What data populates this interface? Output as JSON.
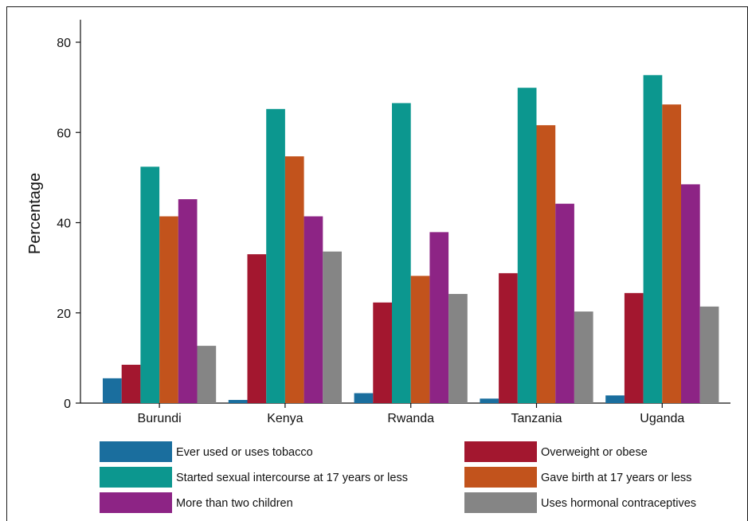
{
  "chart_data": {
    "type": "bar",
    "ylabel": "Percentage",
    "ylim": [
      0,
      85
    ],
    "yticks": [
      0,
      20,
      40,
      60,
      80
    ],
    "categories": [
      "Burundi",
      "Kenya",
      "Rwanda",
      "Tanzania",
      "Uganda"
    ],
    "series": [
      {
        "name": "Ever used or uses tobacco",
        "color": "#1a6e9e",
        "values": [
          5.5,
          0.7,
          2.2,
          1.0,
          1.7
        ]
      },
      {
        "name": "Overweight or obese",
        "color": "#a3172f",
        "values": [
          8.5,
          33.0,
          22.3,
          28.8,
          24.4
        ]
      },
      {
        "name": "Started sexual intercourse at 17 years or less",
        "color": "#0c978f",
        "values": [
          52.4,
          65.2,
          66.5,
          69.9,
          72.7
        ]
      },
      {
        "name": "Gave birth at 17 years or less",
        "color": "#c2531c",
        "values": [
          41.4,
          54.7,
          28.2,
          61.6,
          66.2
        ]
      },
      {
        "name": "More than two children",
        "color": "#8d2485",
        "values": [
          45.2,
          41.4,
          37.9,
          44.2,
          48.5
        ]
      },
      {
        "name": "Uses hormonal contraceptives",
        "color": "#858585",
        "values": [
          12.7,
          33.6,
          24.2,
          20.3,
          21.4
        ]
      }
    ]
  }
}
